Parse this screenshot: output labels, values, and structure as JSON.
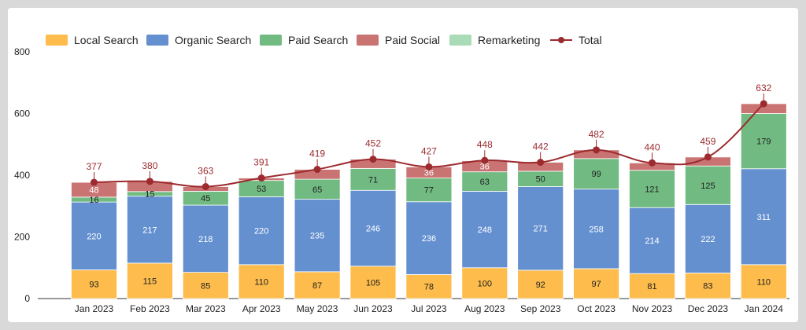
{
  "chart_data": {
    "type": "bar",
    "stacked": true,
    "categories": [
      "Jan 2023",
      "Feb 2023",
      "Mar 2023",
      "Apr 2023",
      "May 2023",
      "Jun 2023",
      "Jul 2023",
      "Aug 2023",
      "Sep 2023",
      "Oct 2023",
      "Nov 2023",
      "Dec 2023",
      "Jan 2024"
    ],
    "series": [
      {
        "name": "Local Search",
        "color": "#fdbc4b",
        "values": [
          93,
          115,
          85,
          110,
          87,
          105,
          78,
          100,
          92,
          97,
          81,
          83,
          110
        ]
      },
      {
        "name": "Organic Search",
        "color": "#6490d0",
        "values": [
          220,
          217,
          218,
          220,
          235,
          246,
          236,
          248,
          271,
          258,
          214,
          222,
          311
        ]
      },
      {
        "name": "Paid Search",
        "color": "#71bb82",
        "values": [
          16,
          15,
          45,
          53,
          65,
          71,
          77,
          63,
          50,
          99,
          121,
          125,
          179
        ]
      },
      {
        "name": "Paid Social",
        "color": "#c97473",
        "values": [
          48,
          33,
          15,
          8,
          32,
          30,
          36,
          36,
          29,
          28,
          24,
          29,
          32
        ]
      },
      {
        "name": "Remarketing",
        "color": "#a8dbb6",
        "values": [
          null,
          null,
          null,
          null,
          null,
          null,
          null,
          null,
          null,
          null,
          null,
          null,
          null
        ]
      }
    ],
    "total": {
      "name": "Total",
      "color": "#9c2a2e",
      "values": [
        377,
        380,
        363,
        391,
        419,
        452,
        427,
        448,
        442,
        482,
        440,
        459,
        632
      ]
    },
    "labels": {
      "Local Search": [
        "93",
        "115",
        "85",
        "110",
        "87",
        "105",
        "78",
        "100",
        "92",
        "97",
        "81",
        "83",
        "110"
      ],
      "Organic Search": [
        "220",
        "217",
        "218",
        "220",
        "235",
        "246",
        "236",
        "248",
        "271",
        "258",
        "214",
        "222",
        "311"
      ],
      "Paid Search": [
        "16",
        "15",
        "45",
        "53",
        "65",
        "71",
        "77",
        "63",
        "50",
        "99",
        "121",
        "125",
        "179"
      ],
      "Paid Social": [
        "48",
        "",
        "",
        "",
        "",
        "",
        "36",
        "36",
        "",
        "",
        "",
        "",
        ""
      ],
      "Total": [
        "377",
        "380",
        "363",
        "391",
        "419",
        "452",
        "427",
        "448",
        "442",
        "482",
        "440",
        "459",
        "632"
      ]
    },
    "yticks": [
      "0",
      "200",
      "400",
      "600",
      "800"
    ],
    "ylim": [
      0,
      800
    ],
    "grid": false,
    "legend_position": "top-left"
  }
}
